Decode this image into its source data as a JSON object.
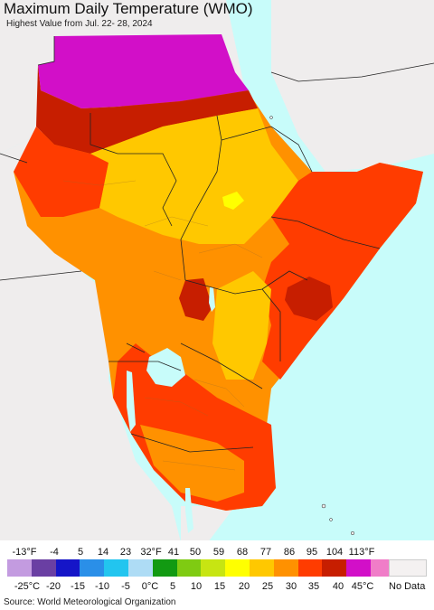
{
  "header": {
    "title": "Maximum Daily Temperature (WMO)",
    "subtitle": "Highest Value from Jul. 22- 28, 2024"
  },
  "legend": {
    "fahrenheit_labels": [
      "-13°F",
      "-4",
      "5",
      "14",
      "23",
      "32°F",
      "41",
      "50",
      "59",
      "68",
      "77",
      "86",
      "95",
      "104",
      "113°F"
    ],
    "celsius_labels": [
      "-25°C",
      "-20",
      "-15",
      "-10",
      "-5",
      "0°C",
      "5",
      "10",
      "15",
      "20",
      "25",
      "30",
      "35",
      "40",
      "45°C"
    ],
    "colors": [
      "#c39be0",
      "#6a3fa3",
      "#1515c8",
      "#2a8fe8",
      "#22c5ef",
      "#aedcf5",
      "#129a12",
      "#7fcb12",
      "#c7e512",
      "#ffff00",
      "#ffc800",
      "#ff9100",
      "#ff3c00",
      "#c71e00",
      "#d20fc8",
      "#f07dc8"
    ],
    "no_data_label": "No Data",
    "no_data_color": "#f4f1f1"
  },
  "map": {
    "ocean_color": "#c8fcfa",
    "outside_land_color": "#efeded",
    "lake_color": "#c8fcfa"
  },
  "footer": {
    "source": "Source: World Meteorological Organization"
  }
}
